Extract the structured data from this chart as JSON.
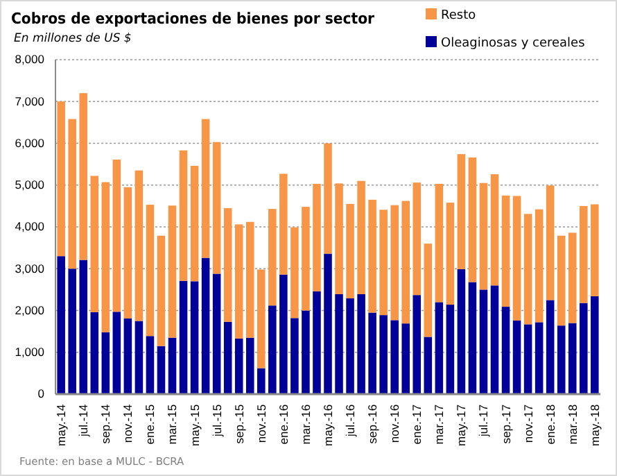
{
  "chart_data": {
    "type": "bar",
    "stacked": true,
    "title": "Cobros de exportaciones de bienes por sector",
    "subtitle": "En millones de US $",
    "annotations": [
      "Fuente: en base a MULC - BCRA"
    ],
    "categories": [
      "may.-14",
      null,
      "jul.-14",
      null,
      "sep.-14",
      null,
      "nov.-14",
      null,
      "ene.-15",
      null,
      "mar.-15",
      null,
      "may.-15",
      null,
      "jul.-15",
      null,
      "sep.-15",
      null,
      "nov.-15",
      null,
      "ene.-16",
      null,
      "mar.-16",
      null,
      "may.-16",
      null,
      "jul.-16",
      null,
      "sep.-16",
      null,
      "nov.-16",
      null,
      "ene.-17",
      null,
      "mar.-17",
      null,
      "may.-17",
      null,
      "jul.-17",
      null,
      "sep.-17",
      null,
      "nov.-17",
      null,
      "ene.-18",
      null,
      "mar.-18",
      null,
      "may.-18"
    ],
    "series": [
      {
        "name": "Oleaginosas y cereales",
        "color": "#000099",
        "values": [
          3300,
          3000,
          3210,
          1960,
          1480,
          1970,
          1810,
          1750,
          1390,
          1150,
          1350,
          2710,
          2700,
          3260,
          2880,
          1730,
          1330,
          1350,
          620,
          2120,
          2860,
          1820,
          2000,
          2460,
          3360,
          2390,
          2290,
          2390,
          1950,
          1890,
          1770,
          1690,
          2370,
          1370,
          2200,
          2140,
          2990,
          2680,
          2500,
          2600,
          2090,
          1760,
          1670,
          1720,
          2250,
          1640,
          1700,
          2180,
          2340
        ]
      },
      {
        "name": "Resto",
        "color": "#f79646",
        "values": [
          3700,
          3580,
          3990,
          3260,
          3590,
          3640,
          3140,
          3600,
          3140,
          2640,
          3160,
          3120,
          2760,
          3320,
          3150,
          2720,
          2730,
          2770,
          2360,
          2310,
          2410,
          2170,
          2480,
          2570,
          2640,
          2650,
          2260,
          2710,
          2700,
          2520,
          2750,
          2930,
          2690,
          2230,
          2830,
          2440,
          2750,
          2980,
          2550,
          2660,
          2660,
          2980,
          2640,
          2700,
          2740,
          2150,
          2160,
          2320,
          2200
        ]
      }
    ],
    "ylim": [
      0,
      8000
    ],
    "yticks": [
      {
        "value": 0,
        "label": "0"
      },
      {
        "value": 1000,
        "label": "1,000"
      },
      {
        "value": 2000,
        "label": "2,000"
      },
      {
        "value": 3000,
        "label": "3,000"
      },
      {
        "value": 4000,
        "label": "4,000"
      },
      {
        "value": 5000,
        "label": "5,000"
      },
      {
        "value": 6000,
        "label": "6,000"
      },
      {
        "value": 7000,
        "label": "7,000"
      },
      {
        "value": 8000,
        "label": "8,000"
      }
    ],
    "grid": "y",
    "legend": "top right"
  }
}
